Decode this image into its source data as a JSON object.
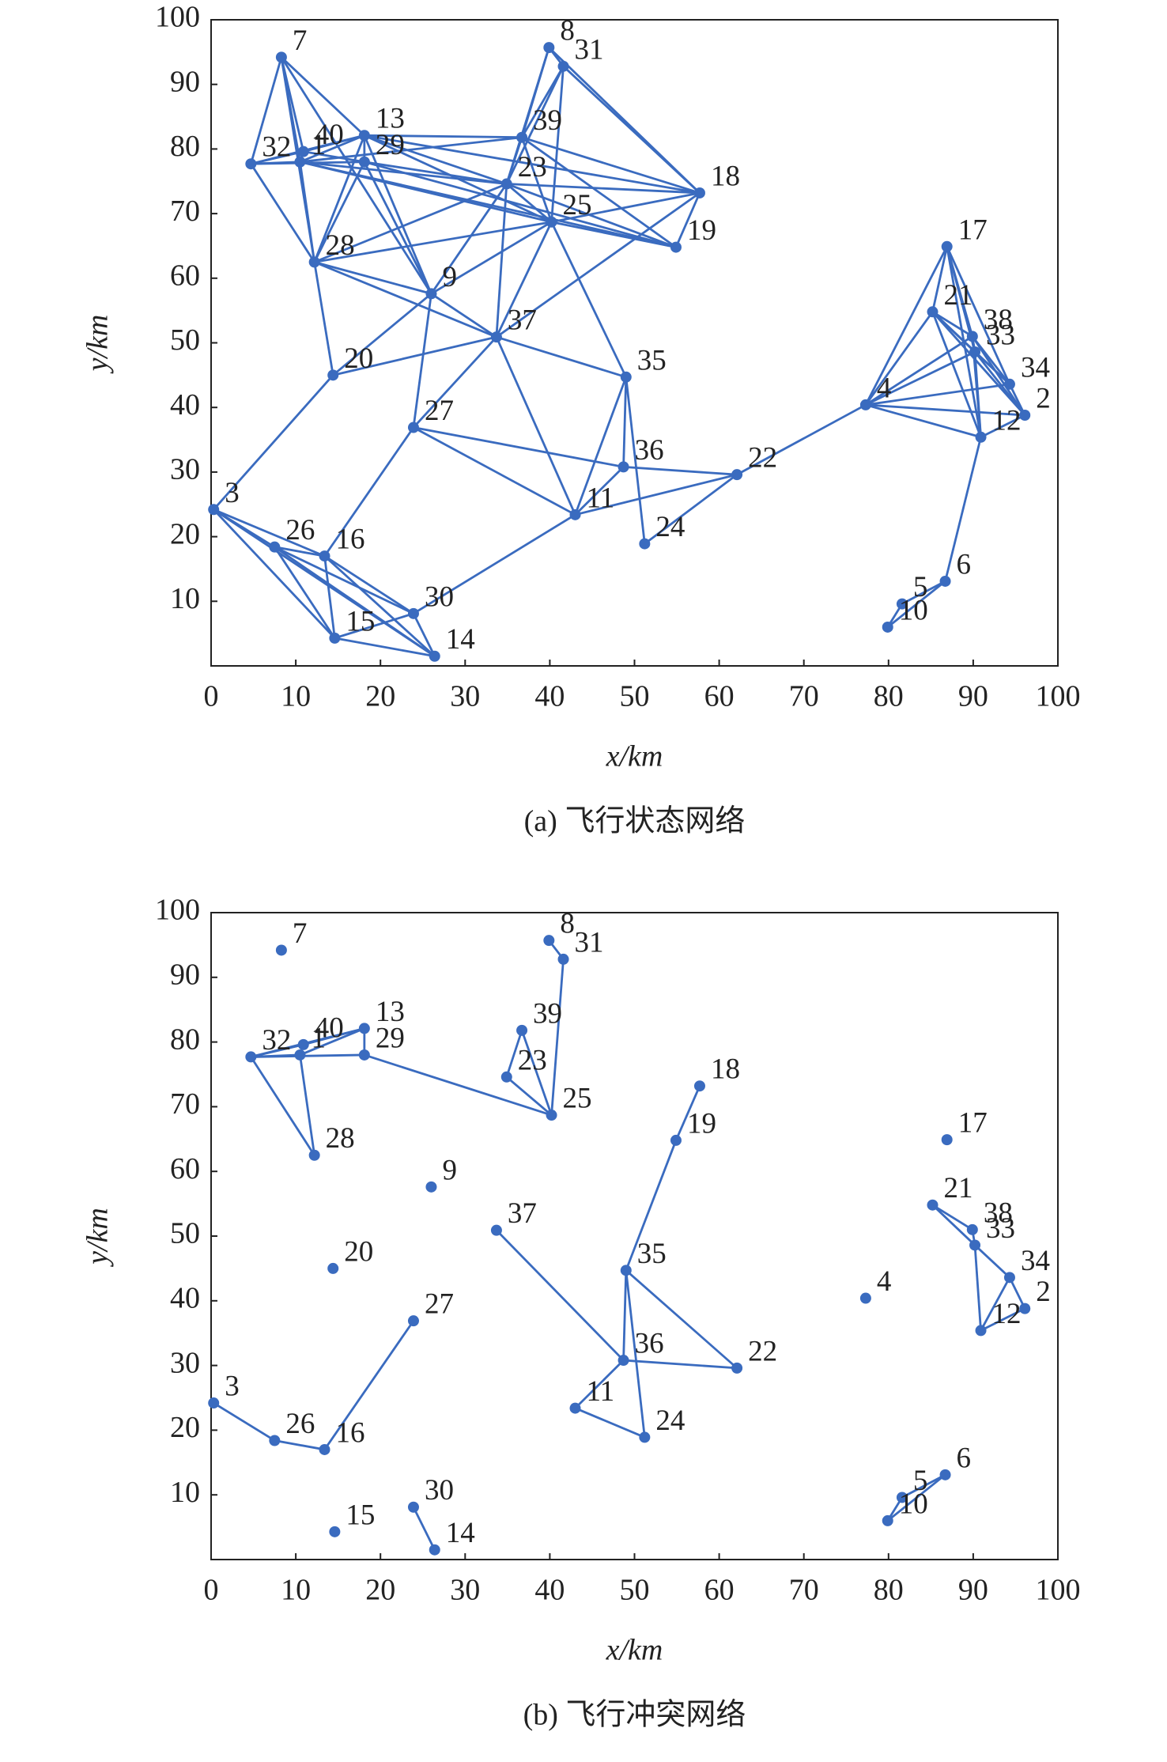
{
  "chart_data": [
    {
      "type": "network",
      "caption": "(a) 飞行状态网络",
      "x_label": "x/km",
      "y_label": "y/km",
      "color": "#3a6bbf",
      "xlim": [
        0,
        100
      ],
      "ylim": [
        0,
        100
      ],
      "xticks": [
        0,
        10,
        20,
        30,
        40,
        50,
        60,
        70,
        80,
        90,
        100
      ],
      "yticks": [
        10,
        20,
        30,
        40,
        50,
        60,
        70,
        80,
        90,
        100
      ],
      "nodes": [
        {
          "label": "1",
          "x": 10.5,
          "y": 78.0
        },
        {
          "label": "2",
          "x": 96.1,
          "y": 38.8
        },
        {
          "label": "3",
          "x": 0.3,
          "y": 24.2
        },
        {
          "label": "4",
          "x": 77.3,
          "y": 40.4
        },
        {
          "label": "5",
          "x": 81.6,
          "y": 9.6
        },
        {
          "label": "6",
          "x": 86.7,
          "y": 13.1
        },
        {
          "label": "7",
          "x": 8.3,
          "y": 94.2
        },
        {
          "label": "8",
          "x": 39.9,
          "y": 95.7
        },
        {
          "label": "9",
          "x": 26.0,
          "y": 57.6
        },
        {
          "label": "10",
          "x": 79.9,
          "y": 6.0
        },
        {
          "label": "11",
          "x": 43.0,
          "y": 23.4
        },
        {
          "label": "12",
          "x": 90.9,
          "y": 35.4
        },
        {
          "label": "13",
          "x": 18.1,
          "y": 82.1
        },
        {
          "label": "14",
          "x": 26.4,
          "y": 1.5
        },
        {
          "label": "15",
          "x": 14.6,
          "y": 4.3
        },
        {
          "label": "16",
          "x": 13.4,
          "y": 17.0
        },
        {
          "label": "17",
          "x": 86.9,
          "y": 64.9
        },
        {
          "label": "18",
          "x": 57.7,
          "y": 73.2
        },
        {
          "label": "19",
          "x": 54.9,
          "y": 64.8
        },
        {
          "label": "20",
          "x": 14.4,
          "y": 45.0
        },
        {
          "label": "21",
          "x": 85.2,
          "y": 54.8
        },
        {
          "label": "22",
          "x": 62.1,
          "y": 29.6
        },
        {
          "label": "23",
          "x": 34.9,
          "y": 74.6
        },
        {
          "label": "24",
          "x": 51.2,
          "y": 18.9
        },
        {
          "label": "25",
          "x": 40.2,
          "y": 68.7
        },
        {
          "label": "26",
          "x": 7.5,
          "y": 18.4
        },
        {
          "label": "27",
          "x": 23.9,
          "y": 36.9
        },
        {
          "label": "28",
          "x": 12.2,
          "y": 62.5
        },
        {
          "label": "29",
          "x": 18.1,
          "y": 78.0
        },
        {
          "label": "30",
          "x": 23.9,
          "y": 8.1
        },
        {
          "label": "31",
          "x": 41.6,
          "y": 92.8
        },
        {
          "label": "32",
          "x": 4.7,
          "y": 77.7
        },
        {
          "label": "33",
          "x": 90.2,
          "y": 48.6
        },
        {
          "label": "34",
          "x": 94.3,
          "y": 43.6
        },
        {
          "label": "35",
          "x": 49.0,
          "y": 44.7
        },
        {
          "label": "36",
          "x": 48.7,
          "y": 30.8
        },
        {
          "label": "37",
          "x": 33.7,
          "y": 50.9
        },
        {
          "label": "38",
          "x": 89.9,
          "y": 51.0
        },
        {
          "label": "39",
          "x": 36.7,
          "y": 81.8
        },
        {
          "label": "40",
          "x": 10.9,
          "y": 79.6
        }
      ],
      "edges": [
        [
          6,
          31
        ],
        [
          6,
          39
        ],
        [
          6,
          0
        ],
        [
          6,
          27
        ],
        [
          6,
          12
        ],
        [
          6,
          8
        ],
        [
          31,
          39
        ],
        [
          31,
          0
        ],
        [
          31,
          12
        ],
        [
          31,
          28
        ],
        [
          31,
          27
        ],
        [
          39,
          12
        ],
        [
          39,
          28
        ],
        [
          39,
          0
        ],
        [
          0,
          12
        ],
        [
          0,
          27
        ],
        [
          0,
          22
        ],
        [
          0,
          38
        ],
        [
          0,
          24
        ],
        [
          0,
          18
        ],
        [
          12,
          28
        ],
        [
          12,
          38
        ],
        [
          12,
          22
        ],
        [
          12,
          17
        ],
        [
          12,
          27
        ],
        [
          12,
          8
        ],
        [
          12,
          24
        ],
        [
          28,
          27
        ],
        [
          28,
          8
        ],
        [
          28,
          22
        ],
        [
          28,
          18
        ],
        [
          27,
          19
        ],
        [
          27,
          22
        ],
        [
          27,
          24
        ],
        [
          27,
          8
        ],
        [
          27,
          36
        ],
        [
          38,
          7
        ],
        [
          38,
          30
        ],
        [
          38,
          22
        ],
        [
          38,
          24
        ],
        [
          38,
          17
        ],
        [
          38,
          18
        ],
        [
          7,
          30
        ],
        [
          7,
          22
        ],
        [
          7,
          17
        ],
        [
          30,
          24
        ],
        [
          30,
          17
        ],
        [
          30,
          22
        ],
        [
          22,
          24
        ],
        [
          22,
          17
        ],
        [
          22,
          8
        ],
        [
          22,
          36
        ],
        [
          22,
          18
        ],
        [
          24,
          18
        ],
        [
          24,
          17
        ],
        [
          24,
          34
        ],
        [
          24,
          36
        ],
        [
          24,
          8
        ],
        [
          36,
          8
        ],
        [
          36,
          19
        ],
        [
          36,
          26
        ],
        [
          36,
          34
        ],
        [
          36,
          10
        ],
        [
          8,
          26
        ],
        [
          8,
          19
        ],
        [
          19,
          2
        ],
        [
          26,
          15
        ],
        [
          26,
          35
        ],
        [
          26,
          10
        ],
        [
          34,
          35
        ],
        [
          34,
          23
        ],
        [
          34,
          10
        ],
        [
          35,
          21
        ],
        [
          35,
          10
        ],
        [
          10,
          21
        ],
        [
          10,
          29
        ],
        [
          21,
          23
        ],
        [
          21,
          3
        ],
        [
          2,
          25
        ],
        [
          2,
          14
        ],
        [
          2,
          13
        ],
        [
          2,
          15
        ],
        [
          25,
          15
        ],
        [
          25,
          14
        ],
        [
          25,
          29
        ],
        [
          25,
          13
        ],
        [
          15,
          14
        ],
        [
          15,
          29
        ],
        [
          15,
          13
        ],
        [
          14,
          29
        ],
        [
          14,
          13
        ],
        [
          29,
          13
        ],
        [
          3,
          20
        ],
        [
          3,
          16
        ],
        [
          3,
          37
        ],
        [
          3,
          32
        ],
        [
          3,
          33
        ],
        [
          3,
          1
        ],
        [
          3,
          11
        ],
        [
          20,
          16
        ],
        [
          20,
          37
        ],
        [
          20,
          32
        ],
        [
          20,
          33
        ],
        [
          20,
          11
        ],
        [
          20,
          1
        ],
        [
          16,
          37
        ],
        [
          16,
          32
        ],
        [
          16,
          33
        ],
        [
          16,
          11
        ],
        [
          37,
          32
        ],
        [
          37,
          33
        ],
        [
          37,
          1
        ],
        [
          37,
          11
        ],
        [
          32,
          33
        ],
        [
          32,
          1
        ],
        [
          32,
          11
        ],
        [
          33,
          1
        ],
        [
          11,
          1
        ],
        [
          11,
          5
        ],
        [
          5,
          4
        ],
        [
          5,
          9
        ],
        [
          4,
          9
        ],
        [
          17,
          18
        ],
        [
          36,
          17
        ]
      ]
    },
    {
      "type": "network",
      "caption": "(b) 飞行冲突网络",
      "x_label": "x/km",
      "y_label": "y/km",
      "color": "#3a6bbf",
      "xlim": [
        0,
        100
      ],
      "ylim": [
        0,
        100
      ],
      "xticks": [
        0,
        10,
        20,
        30,
        40,
        50,
        60,
        70,
        80,
        90,
        100
      ],
      "yticks": [
        10,
        20,
        30,
        40,
        50,
        60,
        70,
        80,
        90,
        100
      ],
      "nodes": [
        {
          "label": "1",
          "x": 10.5,
          "y": 78.0
        },
        {
          "label": "2",
          "x": 96.1,
          "y": 38.8
        },
        {
          "label": "3",
          "x": 0.3,
          "y": 24.2
        },
        {
          "label": "4",
          "x": 77.3,
          "y": 40.4
        },
        {
          "label": "5",
          "x": 81.6,
          "y": 9.6
        },
        {
          "label": "6",
          "x": 86.7,
          "y": 13.1
        },
        {
          "label": "7",
          "x": 8.3,
          "y": 94.2
        },
        {
          "label": "8",
          "x": 39.9,
          "y": 95.7
        },
        {
          "label": "9",
          "x": 26.0,
          "y": 57.6
        },
        {
          "label": "10",
          "x": 79.9,
          "y": 6.0
        },
        {
          "label": "11",
          "x": 43.0,
          "y": 23.4
        },
        {
          "label": "12",
          "x": 90.9,
          "y": 35.4
        },
        {
          "label": "13",
          "x": 18.1,
          "y": 82.1
        },
        {
          "label": "14",
          "x": 26.4,
          "y": 1.5
        },
        {
          "label": "15",
          "x": 14.6,
          "y": 4.3
        },
        {
          "label": "16",
          "x": 13.4,
          "y": 17.0
        },
        {
          "label": "17",
          "x": 86.9,
          "y": 64.9
        },
        {
          "label": "18",
          "x": 57.7,
          "y": 73.2
        },
        {
          "label": "19",
          "x": 54.9,
          "y": 64.8
        },
        {
          "label": "20",
          "x": 14.4,
          "y": 45.0
        },
        {
          "label": "21",
          "x": 85.2,
          "y": 54.8
        },
        {
          "label": "22",
          "x": 62.1,
          "y": 29.6
        },
        {
          "label": "23",
          "x": 34.9,
          "y": 74.6
        },
        {
          "label": "24",
          "x": 51.2,
          "y": 18.9
        },
        {
          "label": "25",
          "x": 40.2,
          "y": 68.7
        },
        {
          "label": "26",
          "x": 7.5,
          "y": 18.4
        },
        {
          "label": "27",
          "x": 23.9,
          "y": 36.9
        },
        {
          "label": "28",
          "x": 12.2,
          "y": 62.5
        },
        {
          "label": "29",
          "x": 18.1,
          "y": 78.0
        },
        {
          "label": "30",
          "x": 23.9,
          "y": 8.1
        },
        {
          "label": "31",
          "x": 41.6,
          "y": 92.8
        },
        {
          "label": "32",
          "x": 4.7,
          "y": 77.7
        },
        {
          "label": "33",
          "x": 90.2,
          "y": 48.6
        },
        {
          "label": "34",
          "x": 94.3,
          "y": 43.6
        },
        {
          "label": "35",
          "x": 49.0,
          "y": 44.7
        },
        {
          "label": "36",
          "x": 48.7,
          "y": 30.8
        },
        {
          "label": "37",
          "x": 33.7,
          "y": 50.9
        },
        {
          "label": "38",
          "x": 89.9,
          "y": 51.0
        },
        {
          "label": "39",
          "x": 36.7,
          "y": 81.8
        },
        {
          "label": "40",
          "x": 10.9,
          "y": 79.6
        }
      ],
      "edges": [
        [
          31,
          39
        ],
        [
          31,
          0
        ],
        [
          31,
          12
        ],
        [
          31,
          28
        ],
        [
          31,
          27
        ],
        [
          39,
          12
        ],
        [
          0,
          12
        ],
        [
          0,
          27
        ],
        [
          12,
          28
        ],
        [
          28,
          24
        ],
        [
          22,
          38
        ],
        [
          38,
          24
        ],
        [
          22,
          24
        ],
        [
          7,
          30
        ],
        [
          30,
          24
        ],
        [
          17,
          18
        ],
        [
          18,
          34
        ],
        [
          34,
          35
        ],
        [
          34,
          23
        ],
        [
          34,
          21
        ],
        [
          35,
          21
        ],
        [
          35,
          10
        ],
        [
          10,
          23
        ],
        [
          36,
          35
        ],
        [
          2,
          25
        ],
        [
          25,
          15
        ],
        [
          15,
          26
        ],
        [
          29,
          13
        ],
        [
          20,
          32
        ],
        [
          20,
          37
        ],
        [
          37,
          32
        ],
        [
          32,
          11
        ],
        [
          32,
          33
        ],
        [
          33,
          1
        ],
        [
          11,
          1
        ],
        [
          11,
          33
        ],
        [
          4,
          9
        ],
        [
          5,
          9
        ],
        [
          4,
          5
        ]
      ]
    }
  ]
}
